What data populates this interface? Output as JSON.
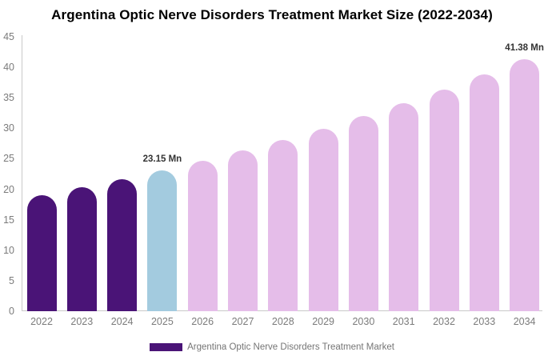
{
  "chart_data": {
    "type": "bar",
    "title": "Argentina Optic Nerve Disorders Treatment Market Size (2022-2034)",
    "xlabel": "",
    "ylabel": "",
    "unit": "Mn",
    "categories": [
      "2022",
      "2023",
      "2024",
      "2025",
      "2026",
      "2027",
      "2028",
      "2029",
      "2030",
      "2031",
      "2032",
      "2033",
      "2034"
    ],
    "values": [
      19.07,
      20.34,
      21.7,
      23.15,
      24.69,
      26.34,
      28.1,
      29.97,
      31.97,
      34.11,
      36.38,
      38.81,
      41.38
    ],
    "bar_roles": [
      "historical",
      "historical",
      "historical",
      "current",
      "forecast",
      "forecast",
      "forecast",
      "forecast",
      "forecast",
      "forecast",
      "forecast",
      "forecast",
      "forecast"
    ],
    "colors": {
      "historical": "#4A1477",
      "current": "#A3CBDF",
      "forecast": "#E5BDE9"
    },
    "ylim": [
      0,
      45
    ],
    "yticks": [
      0,
      5,
      10,
      15,
      20,
      25,
      30,
      35,
      40,
      45
    ],
    "grid": false,
    "legend_position": "bottom",
    "annotations": [
      {
        "category": "2025",
        "label": "23.15 Mn"
      },
      {
        "category": "2034",
        "label": "41.38 Mn"
      }
    ]
  },
  "legend": {
    "label": "Argentina Optic Nerve Disorders Treatment Market",
    "swatch_color": "#4A1477"
  }
}
